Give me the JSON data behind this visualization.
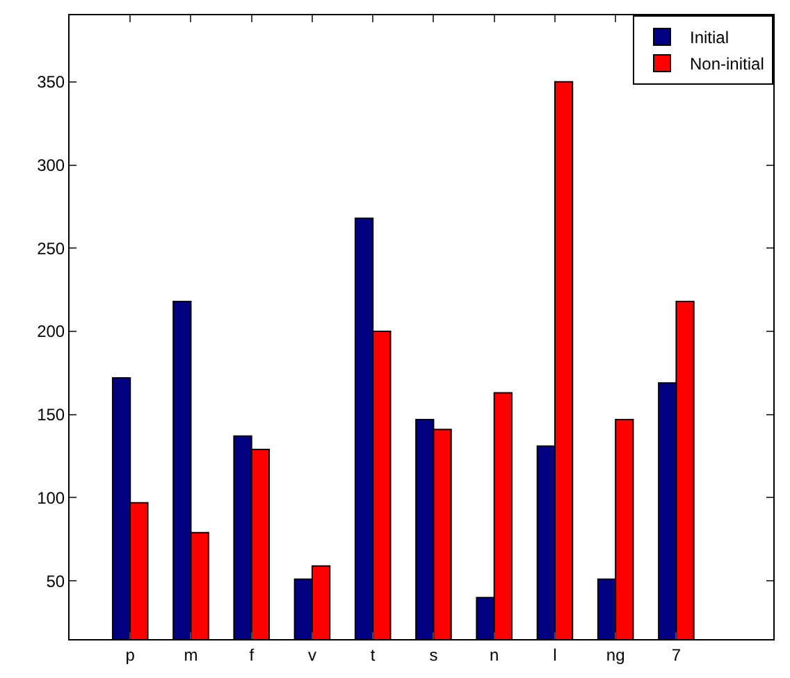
{
  "chart_data": {
    "type": "bar",
    "categories": [
      "p",
      "m",
      "f",
      "v",
      "t",
      "s",
      "n",
      "l",
      "ng",
      "7"
    ],
    "series": [
      {
        "name": "Initial",
        "color": "#000080",
        "values": [
          172,
          218,
          137,
          51,
          268,
          147,
          40,
          131,
          51,
          169
        ]
      },
      {
        "name": "Non-initial",
        "color": "#ff0000",
        "values": [
          97,
          79,
          129,
          59,
          200,
          141,
          163,
          350,
          147,
          218
        ]
      }
    ],
    "ylim": [
      15,
      390
    ],
    "yticks": [
      50,
      100,
      150,
      200,
      250,
      300,
      350
    ],
    "legend": "top right"
  }
}
